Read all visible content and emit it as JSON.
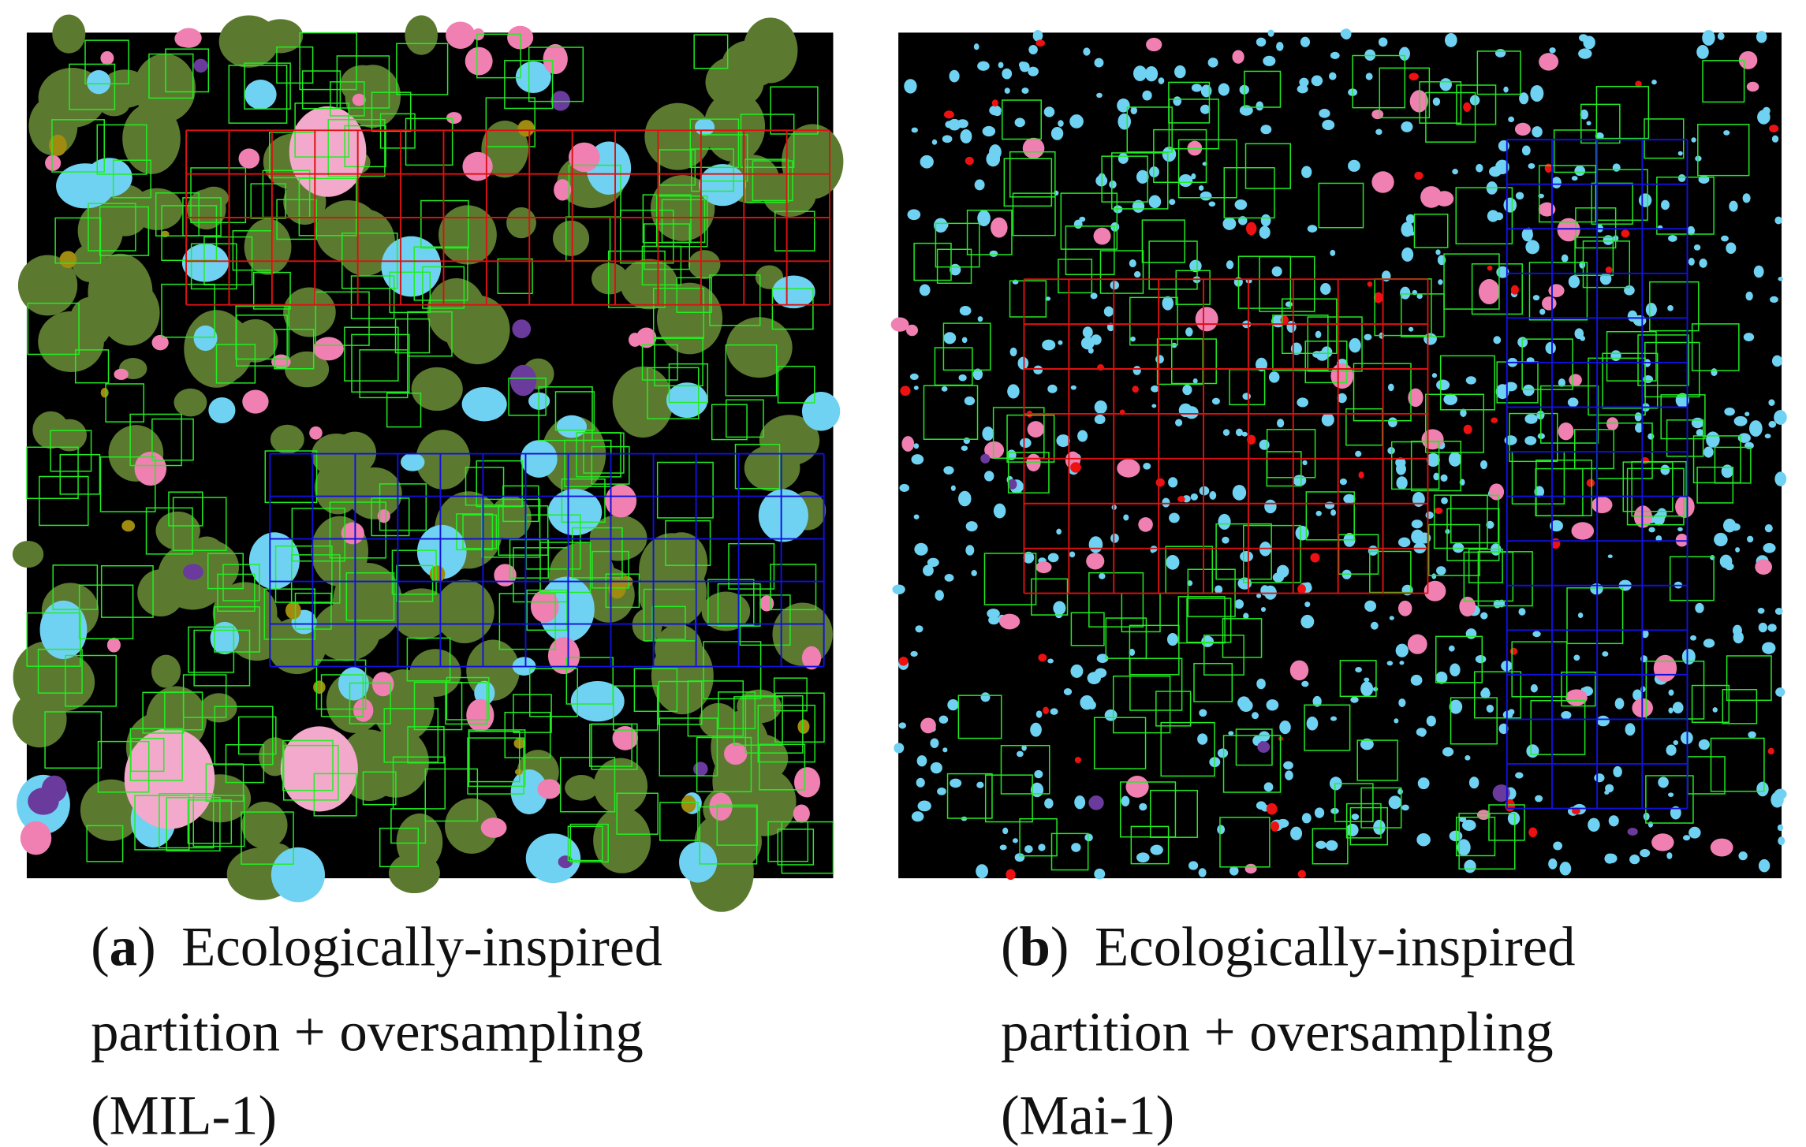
{
  "panels": [
    {
      "label": {
        "open": "(",
        "letter": "a",
        "close": ")"
      },
      "caption_lines": [
        "Ecologically-inspired",
        "partition + oversampling",
        "(MIL-1)"
      ]
    },
    {
      "label": {
        "open": "(",
        "letter": "b",
        "close": ")"
      },
      "caption_lines": [
        "Ecologically-inspired",
        "partition + oversampling",
        "(Mai-1)"
      ]
    }
  ]
}
